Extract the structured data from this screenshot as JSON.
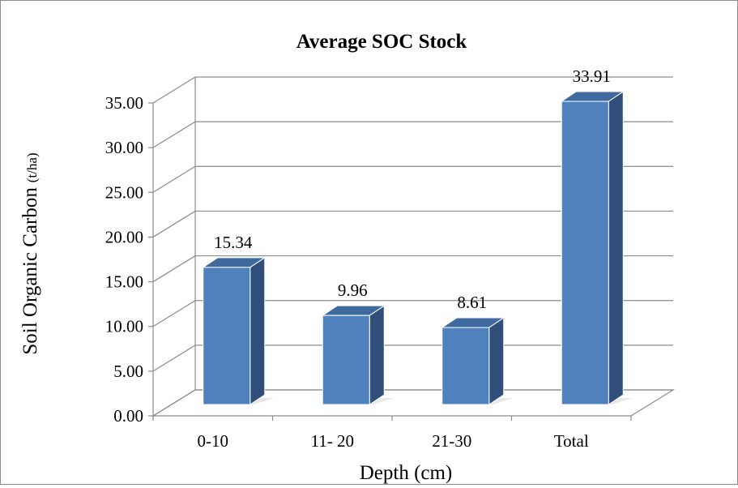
{
  "chart_data": {
    "type": "bar",
    "title": "Average SOC Stock",
    "xlabel": "Depth (cm)",
    "ylabel": "Soil Organic Carbon",
    "ylabel_unit": "(t/ha)",
    "categories": [
      "0-10",
      "11- 20",
      "21-30",
      "Total"
    ],
    "values": [
      15.34,
      9.96,
      8.61,
      33.91
    ],
    "data_labels": [
      "15.34",
      "9.96",
      "8.61",
      "33.91"
    ],
    "ylim": [
      0,
      35
    ],
    "yticks": [
      "0.00",
      "5.00",
      "10.00",
      "15.00",
      "20.00",
      "25.00",
      "30.00",
      "35.00"
    ],
    "grid": true,
    "legend": "none",
    "style": "3d-column",
    "colors": {
      "bar_front": "#4f81bd",
      "bar_side": "#2f4f7a",
      "bar_top": "#3f6a9e",
      "grid": "#8c8c8c"
    }
  }
}
